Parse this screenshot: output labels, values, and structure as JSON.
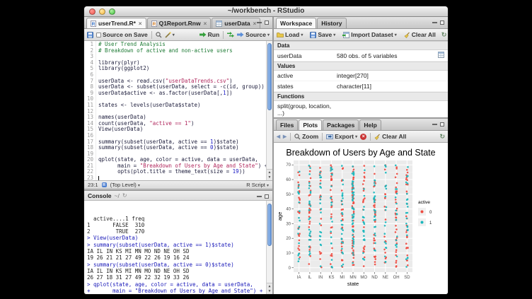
{
  "window": {
    "title": "~/workbench - RStudio"
  },
  "source": {
    "tabs": [
      {
        "label": "userTrend.R*",
        "icon": "r-doc-icon",
        "selected": true
      },
      {
        "label": "Q1Report.Rnw",
        "icon": "rnw-doc-icon",
        "selected": false
      },
      {
        "label": "userData",
        "icon": "data-grid-icon",
        "selected": false
      }
    ],
    "toolbar": {
      "source_on_save": "Source on Save",
      "run": "Run",
      "source": "Source"
    },
    "status": {
      "position": "23:1",
      "scope": "(Top Level)",
      "mode": "R Script"
    },
    "lines": [
      [
        [
          "c",
          "# User Trend Analysis"
        ]
      ],
      [
        [
          "c",
          "# Breakdown of active and non-active users"
        ]
      ],
      [],
      [
        [
          "d",
          "library(plyr)"
        ]
      ],
      [
        [
          "d",
          "library(ggplot2)"
        ]
      ],
      [],
      [
        [
          "d",
          "userData <- read.csv("
        ],
        [
          "s",
          "\"userDataTrends.csv\""
        ],
        [
          "d",
          ")"
        ]
      ],
      [
        [
          "d",
          "userData <- subset(userData, select = -c(id, group))"
        ]
      ],
      [
        [
          "d",
          "userData$active <- as.factor(userData[,"
        ],
        [
          "n",
          "1"
        ],
        [
          "d",
          "])"
        ]
      ],
      [],
      [
        [
          "d",
          "states <- levels(userData$state)"
        ]
      ],
      [],
      [
        [
          "d",
          "names(userData)"
        ]
      ],
      [
        [
          "d",
          "count(userData, "
        ],
        [
          "s",
          "\"active == 1\""
        ],
        [
          "d",
          ")"
        ]
      ],
      [
        [
          "d",
          "View(userData)"
        ]
      ],
      [],
      [
        [
          "d",
          "summary(subset(userData, active == "
        ],
        [
          "n",
          "1"
        ],
        [
          "d",
          ")$state)"
        ]
      ],
      [
        [
          "d",
          "summary(subset(userData, active == "
        ],
        [
          "n",
          "0"
        ],
        [
          "d",
          ")$state)"
        ]
      ],
      [],
      [
        [
          "d",
          "qplot(state, age, color = active, data = userData,"
        ]
      ],
      [
        [
          "d",
          "      main = "
        ],
        [
          "s",
          "\"Breakdown of Users by Age and State\""
        ],
        [
          "d",
          ") +"
        ]
      ],
      [
        [
          "d",
          "      opts(plot.title = theme_text(size = "
        ],
        [
          "n",
          "19"
        ],
        [
          "d",
          "))"
        ]
      ],
      []
    ]
  },
  "console": {
    "title": "Console",
    "path": "~/",
    "lines": [
      [
        "o",
        "  active....1 freq"
      ],
      [
        "o",
        "1       FALSE  310"
      ],
      [
        "o",
        "2        TRUE  270"
      ],
      [
        "i",
        "> View(userData)"
      ],
      [
        "i",
        "> summary(subset(userData, active == 1)$state)"
      ],
      [
        "o",
        "IA IL IN KS MI MN MO ND NE OH SD"
      ],
      [
        "o",
        "19 26 21 21 27 49 22 26 19 16 24"
      ],
      [
        "i",
        "> summary(subset(userData, active == 0)$state)"
      ],
      [
        "o",
        "IA IL IN KS MI MN MO ND NE OH SD"
      ],
      [
        "o",
        "26 27 18 31 27 49 22 32 19 33 26"
      ],
      [
        "i",
        "> qplot(state, age, color = active, data = userData,"
      ],
      [
        "i",
        "+       main = \"Breakdown of Users by Age and State\") +"
      ],
      [
        "i",
        "+       opts(plot.title = theme_text(size = 19))"
      ],
      [
        "i",
        "> "
      ]
    ]
  },
  "workspace": {
    "tabs": [
      {
        "label": "Workspace",
        "selected": true
      },
      {
        "label": "History",
        "selected": false
      }
    ],
    "toolbar": {
      "load": "Load",
      "save": "Save",
      "import": "Import Dataset",
      "clear": "Clear All"
    },
    "sections": [
      {
        "header": "Data",
        "rows": [
          {
            "name": "userData",
            "value": "580 obs. of 5 variables",
            "icon": "data-grid-icon"
          }
        ]
      },
      {
        "header": "Values",
        "rows": [
          {
            "name": "active",
            "value": "integer[270]"
          },
          {
            "name": "states",
            "value": "character[11]"
          }
        ]
      },
      {
        "header": "Functions",
        "rows": [
          {
            "name": "split(group, location, ...)",
            "value": ""
          }
        ]
      }
    ]
  },
  "plots": {
    "tabs": [
      {
        "label": "Files",
        "selected": false
      },
      {
        "label": "Plots",
        "selected": true
      },
      {
        "label": "Packages",
        "selected": false
      },
      {
        "label": "Help",
        "selected": false
      }
    ],
    "toolbar": {
      "zoom": "Zoom",
      "export": "Export",
      "clear": "Clear All"
    }
  },
  "chart_data": {
    "type": "scatter",
    "title": "Breakdown of Users by Age and State",
    "xlabel": "state",
    "ylabel": "age",
    "categories": [
      "IA",
      "IL",
      "IN",
      "KS",
      "MI",
      "MN",
      "MO",
      "ND",
      "NE",
      "OH",
      "SD"
    ],
    "ylim": [
      0,
      70
    ],
    "yticks": [
      0,
      10,
      20,
      30,
      40,
      50,
      60,
      70
    ],
    "grid": true,
    "panel_color": "#ebebeb",
    "legend_position": "right",
    "legend_title": "active",
    "series": [
      {
        "name": "0",
        "color": "#ee4b40",
        "counts_per_state": [
          26,
          27,
          18,
          31,
          27,
          49,
          22,
          32,
          19,
          33,
          26
        ]
      },
      {
        "name": "1",
        "color": "#1ab6bc",
        "counts_per_state": [
          19,
          26,
          21,
          21,
          27,
          49,
          22,
          26,
          19,
          16,
          24
        ]
      }
    ]
  }
}
